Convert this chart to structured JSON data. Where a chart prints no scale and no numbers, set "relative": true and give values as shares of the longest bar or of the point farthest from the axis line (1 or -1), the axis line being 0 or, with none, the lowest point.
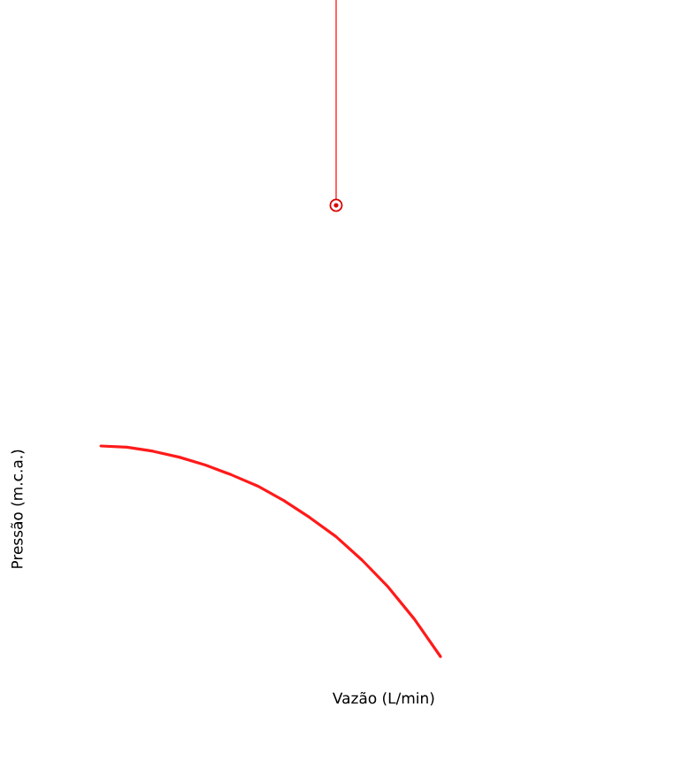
{
  "chart_data": {
    "type": "line",
    "relative": true,
    "xlabel": "Vazão (L/min)",
    "ylabel": "Pressão (m.c.a.)",
    "categories": [
      null,
      null,
      null,
      null,
      null,
      null,
      null,
      null,
      null,
      null,
      null,
      null,
      null,
      null
    ],
    "series": [
      {
        "color": "#ff1a1a",
        "values": [
          1,
          0.994,
          0.975,
          0.947,
          0.91,
          0.863,
          0.81,
          0.741,
          0.66,
          0.57,
          0.458,
          0.33,
          0.178,
          0
        ]
      }
    ]
  }
}
